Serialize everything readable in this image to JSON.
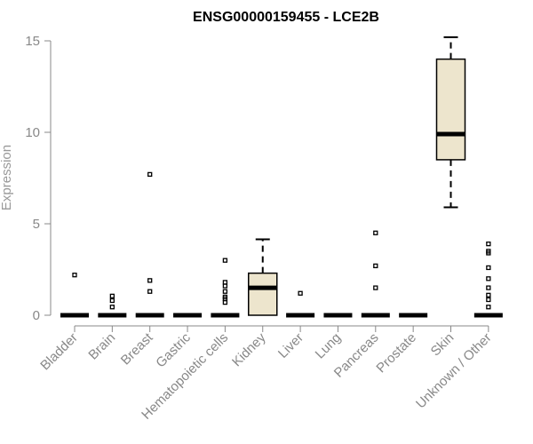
{
  "chart_data": {
    "type": "boxplot",
    "title": "ENSG00000159455 - LCE2B",
    "xlabel": "",
    "ylabel": "Expression",
    "ylim": [
      0,
      15
    ],
    "yticks": [
      0,
      5,
      10,
      15
    ],
    "box_fill": "#ede5cd",
    "categories": [
      "Bladder",
      "Brain",
      "Breast",
      "Gastric",
      "Hematopoietic cells",
      "Kidney",
      "Liver",
      "Lung",
      "Pancreas",
      "Prostate",
      "Skin",
      "Unknown / Other"
    ],
    "boxes": [
      {
        "name": "Bladder",
        "q1": 0,
        "median": 0,
        "q3": 0,
        "whisker_low": 0,
        "whisker_high": 0,
        "outliers": [
          2.2
        ]
      },
      {
        "name": "Brain",
        "q1": 0,
        "median": 0,
        "q3": 0,
        "whisker_low": 0,
        "whisker_high": 0,
        "outliers": [
          0.45,
          0.8,
          1.05
        ]
      },
      {
        "name": "Breast",
        "q1": 0,
        "median": 0,
        "q3": 0,
        "whisker_low": 0,
        "whisker_high": 0,
        "outliers": [
          1.3,
          1.9,
          7.7
        ]
      },
      {
        "name": "Gastric",
        "q1": 0,
        "median": 0,
        "q3": 0,
        "whisker_low": 0,
        "whisker_high": 0,
        "outliers": []
      },
      {
        "name": "Hematopoietic cells",
        "q1": 0,
        "median": 0,
        "q3": 0,
        "whisker_low": 0,
        "whisker_high": 0,
        "outliers": [
          0.7,
          0.9,
          1.0,
          1.3,
          1.6,
          1.8,
          3.0
        ]
      },
      {
        "name": "Kidney",
        "q1": 0,
        "median": 1.5,
        "q3": 2.3,
        "whisker_low": 0,
        "whisker_high": 4.15,
        "outliers": []
      },
      {
        "name": "Liver",
        "q1": 0,
        "median": 0,
        "q3": 0,
        "whisker_low": 0,
        "whisker_high": 0,
        "outliers": [
          1.2
        ]
      },
      {
        "name": "Lung",
        "q1": 0,
        "median": 0,
        "q3": 0,
        "whisker_low": 0,
        "whisker_high": 0,
        "outliers": []
      },
      {
        "name": "Pancreas",
        "q1": 0,
        "median": 0,
        "q3": 0,
        "whisker_low": 0,
        "whisker_high": 0,
        "outliers": [
          1.5,
          2.7,
          4.5
        ]
      },
      {
        "name": "Prostate",
        "q1": 0,
        "median": 0,
        "q3": 0,
        "whisker_low": 0,
        "whisker_high": 0,
        "outliers": []
      },
      {
        "name": "Skin",
        "q1": 8.5,
        "median": 9.9,
        "q3": 14.0,
        "whisker_low": 5.9,
        "whisker_high": 15.2,
        "outliers": []
      },
      {
        "name": "Unknown / Other",
        "q1": 0,
        "median": 0,
        "q3": 0,
        "whisker_low": 0,
        "whisker_high": 0,
        "outliers": [
          0.45,
          0.85,
          1.1,
          1.5,
          2.0,
          2.6,
          3.4,
          3.5,
          3.9
        ]
      }
    ]
  }
}
